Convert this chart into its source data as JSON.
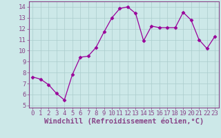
{
  "x": [
    0,
    1,
    2,
    3,
    4,
    5,
    6,
    7,
    8,
    9,
    10,
    11,
    12,
    13,
    14,
    15,
    16,
    17,
    18,
    19,
    20,
    21,
    22,
    23
  ],
  "y": [
    7.6,
    7.4,
    6.9,
    6.1,
    5.5,
    7.8,
    9.4,
    9.5,
    10.3,
    11.7,
    13.0,
    13.85,
    14.0,
    13.4,
    10.9,
    12.25,
    12.1,
    12.1,
    12.1,
    13.5,
    12.8,
    11.0,
    10.2,
    11.3
  ],
  "line_color": "#990099",
  "marker": "D",
  "marker_size": 2.5,
  "bg_color": "#cce8e8",
  "grid_color": "#aacccc",
  "xlabel": "Windchill (Refroidissement éolien,°C)",
  "xlabel_fontsize": 7.5,
  "tick_fontsize": 6.5,
  "ylim": [
    4.8,
    14.5
  ],
  "yticks": [
    5,
    6,
    7,
    8,
    9,
    10,
    11,
    12,
    13,
    14
  ],
  "xlim": [
    -0.5,
    23.5
  ],
  "xticks": [
    0,
    1,
    2,
    3,
    4,
    5,
    6,
    7,
    8,
    9,
    10,
    11,
    12,
    13,
    14,
    15,
    16,
    17,
    18,
    19,
    20,
    21,
    22,
    23
  ],
  "spine_color": "#884488",
  "tick_color": "#884488",
  "label_color": "#884488",
  "text_color": "#884488"
}
